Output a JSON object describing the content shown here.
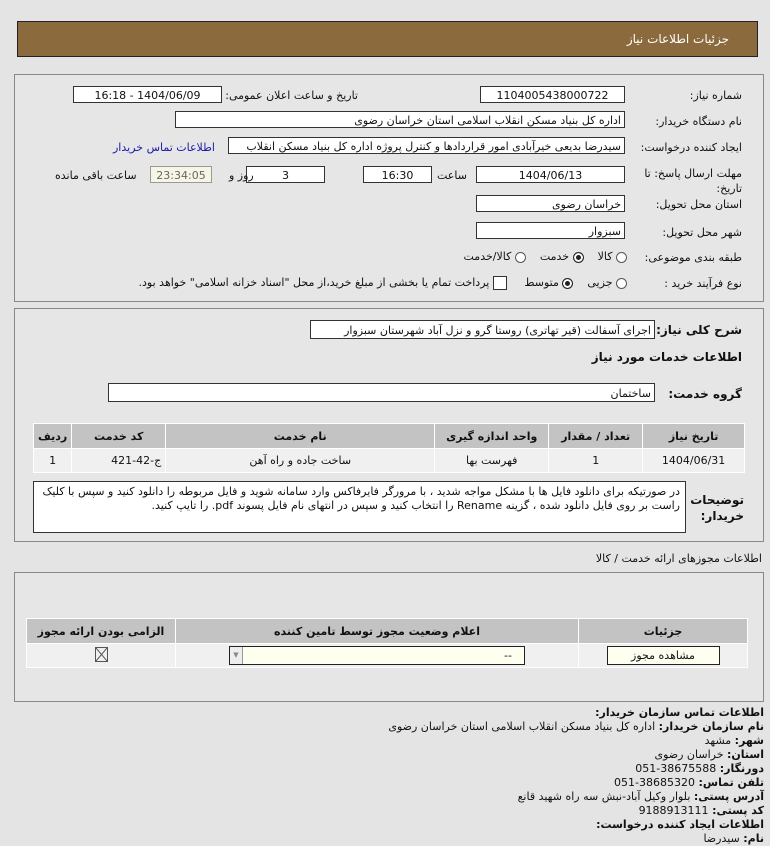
{
  "header": {
    "title": "جزئیات اطلاعات نیاز"
  },
  "details": {
    "need_number_label": "شماره نیاز:",
    "need_number": "1104005438000722",
    "announce_label": "تاریخ و ساعت اعلان عمومی:",
    "announce_value": "1404/06/09 - 16:18",
    "buyer_label": "نام دستگاه خریدار:",
    "buyer_value": "اداره کل بنیاد مسکن انقلاب اسلامی استان خراسان رضوی",
    "creator_label": "ایجاد کننده درخواست:",
    "creator_value": "سیدرضا بدیعی خیرآبادی امور قراردادها و کنترل پروژه اداره کل بنیاد مسکن انقلاب",
    "contact_link": "اطلاعات تماس خریدار",
    "deadline_label": "مهلت ارسال پاسخ: تا تاریخ:",
    "deadline_date": "1404/06/13",
    "time_label": "ساعت",
    "deadline_time": "16:30",
    "days": "3",
    "days_label": "روز و",
    "remaining": "23:34:05",
    "remaining_label": "ساعت باقی مانده",
    "province_label": "استان محل تحویل:",
    "province_value": "خراسان رضوی",
    "city_label": "شهر محل تحویل:",
    "city_value": "سبزوار",
    "category_label": "طبقه بندی موضوعی:",
    "category_options": [
      "کالا",
      "خدمت",
      "کالا/خدمت"
    ],
    "category_selected": "خدمت",
    "process_label": "نوع فرآیند خرید :",
    "process_options": [
      "جزیی",
      "متوسط"
    ],
    "process_selected": "متوسط",
    "payment_text": "پرداخت تمام یا بخشی از مبلغ خرید،از محل \"اسناد خزانه اسلامی\" خواهد بود.",
    "payment_checked": false
  },
  "need": {
    "summary_label": "شرح کلی نیاز:",
    "summary_value": "اجرای آسفالت (قیر تهاتری) روستا گرو و نزل آباد شهرستان سبزوار",
    "services_title": "اطلاعات خدمات مورد نیاز",
    "group_label": "گروه خدمت:",
    "group_value": "ساختمان",
    "table": {
      "headers": [
        "ردیف",
        "کد خدمت",
        "نام خدمت",
        "واحد اندازه گیری",
        "تعداد / مقدار",
        "تاریخ نیاز"
      ],
      "rows": [
        [
          "1",
          "ج-42-421",
          "ساخت جاده و راه آهن",
          "فهرست بها",
          "1",
          "1404/06/31"
        ]
      ]
    },
    "notes_label": "توضیحات خریدار:",
    "notes_value": "در صورتیکه برای دانلود فایل ها با مشکل مواجه شدید ، با مرورگر فایرفاکس وارد سامانه شوید و فایل مربوطه را دانلود کنید و سپس با کلیک راست بر روی فایل دانلود شده ، گزینه Rename را انتخاب کنید و سپس در انتهای نام فایل پسوند pdf. را تایپ کنید."
  },
  "permits": {
    "title": "اطلاعات مجوزهای ارائه خدمت / کالا",
    "headers": [
      "الزامی بودن ارائه مجوز",
      "اعلام وضعیت مجوز توسط تامین کننده",
      "جزئیات"
    ],
    "select_value": "--",
    "view_button": "مشاهده مجوز"
  },
  "contact": {
    "title": "اطلاعات تماس سازمان خریدار:",
    "org_label": "نام سازمان خریدار:",
    "org": "اداره کل بنیاد مسکن انقلاب اسلامی استان خراسان رضوی",
    "city_label": "شهر:",
    "city": "مشهد",
    "province_label": "استان:",
    "province": "خراسان رضوی",
    "fax_label": "دورنگار:",
    "fax": "38675588-051",
    "phone_label": "تلفن تماس:",
    "phone": "38685320-051",
    "address_label": "آدرس پستی:",
    "address": "بلوار وکیل آباد-نبش سه راه شهید قانع",
    "postal_label": "کد پستی:",
    "postal": "9188913111",
    "creator_title": "اطلاعات ایجاد کننده درخواست:",
    "name_label": "نام:",
    "name": "سیدرضا"
  }
}
